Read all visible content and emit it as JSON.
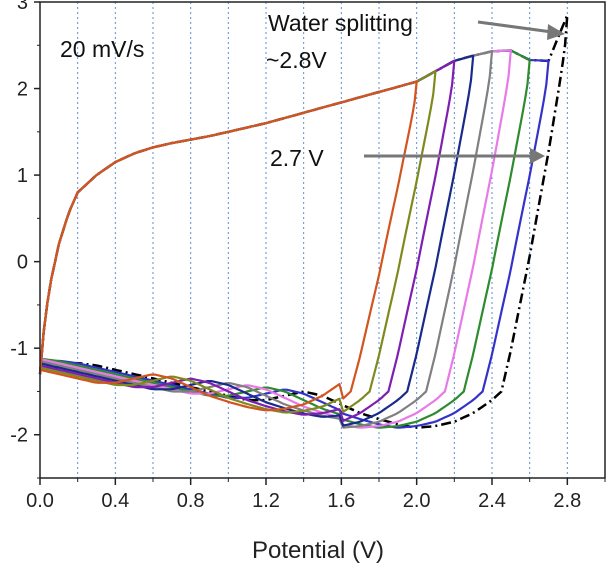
{
  "chart_data": {
    "type": "line",
    "title": "",
    "xlabel": "Potential (V)",
    "ylabel": "",
    "xlim": [
      0.0,
      3.0
    ],
    "ylim": [
      -2.5,
      3.0
    ],
    "xticks": [
      "0.0",
      "0.4",
      "0.8",
      "1.2",
      "1.6",
      "2.0",
      "2.4",
      "2.8"
    ],
    "yticks": [
      "-2",
      "-1",
      "0",
      "1",
      "2",
      "3"
    ],
    "grid": "vertical dashed blue lines",
    "annotations": {
      "scan_rate": "20 mV/s",
      "water_splitting_line1": "Water splitting",
      "water_splitting_line2": "~2.8V",
      "limit_label": "2.7 V"
    },
    "series": [
      {
        "vmax": 2.0,
        "color": "#d2541f"
      },
      {
        "vmax": 2.1,
        "color": "#7f8a1e"
      },
      {
        "vmax": 2.2,
        "color": "#7f1fb2"
      },
      {
        "vmax": 2.3,
        "color": "#1a2a8a"
      },
      {
        "vmax": 2.4,
        "color": "#808080"
      },
      {
        "vmax": 2.5,
        "color": "#e87ae8"
      },
      {
        "vmax": 2.6,
        "color": "#2e8b2e"
      },
      {
        "vmax": 2.7,
        "color": "#3333cc"
      },
      {
        "vmax": 2.8,
        "color": "#000000",
        "dash": "dashdot"
      }
    ],
    "upper_branch": {
      "x": [
        0.0,
        0.02,
        0.05,
        0.1,
        0.15,
        0.2,
        0.3,
        0.4,
        0.5,
        0.6,
        0.7,
        0.8,
        0.9,
        1.0,
        1.1,
        1.2,
        1.3,
        1.4,
        1.5,
        1.6,
        1.7,
        1.8,
        1.9,
        2.0,
        2.1,
        2.2,
        2.3,
        2.4,
        2.5,
        2.6,
        2.7,
        2.8
      ],
      "y": [
        -1.3,
        -0.8,
        -0.3,
        0.2,
        0.55,
        0.8,
        1.0,
        1.15,
        1.25,
        1.32,
        1.37,
        1.41,
        1.45,
        1.5,
        1.55,
        1.6,
        1.66,
        1.72,
        1.78,
        1.84,
        1.9,
        1.96,
        2.02,
        2.08,
        2.2,
        2.32,
        2.38,
        2.43,
        2.44,
        2.33,
        2.32,
        2.85
      ]
    },
    "lower_branch": {
      "x": [
        0.0,
        0.05,
        0.1,
        0.2,
        0.3,
        0.4,
        0.5,
        0.6,
        0.7,
        0.8,
        0.9,
        1.0,
        1.1,
        1.2,
        1.3,
        1.4,
        1.5,
        1.6,
        1.7,
        1.8,
        1.9,
        2.0,
        2.1,
        2.2,
        2.3,
        2.4,
        2.5,
        2.6,
        2.7
      ],
      "y": [
        -1.22,
        -1.18,
        -1.17,
        -1.2,
        -1.25,
        -1.3,
        -1.35,
        -1.4,
        -1.45,
        -1.5,
        -1.55,
        -1.6,
        -1.6,
        -1.55,
        -1.5,
        -1.55,
        -1.65,
        -1.75,
        -1.82,
        -1.88,
        -1.92,
        -1.9,
        -1.85,
        -1.75,
        -1.6,
        -1.4,
        -1.05,
        -0.5,
        0.3
      ]
    }
  }
}
